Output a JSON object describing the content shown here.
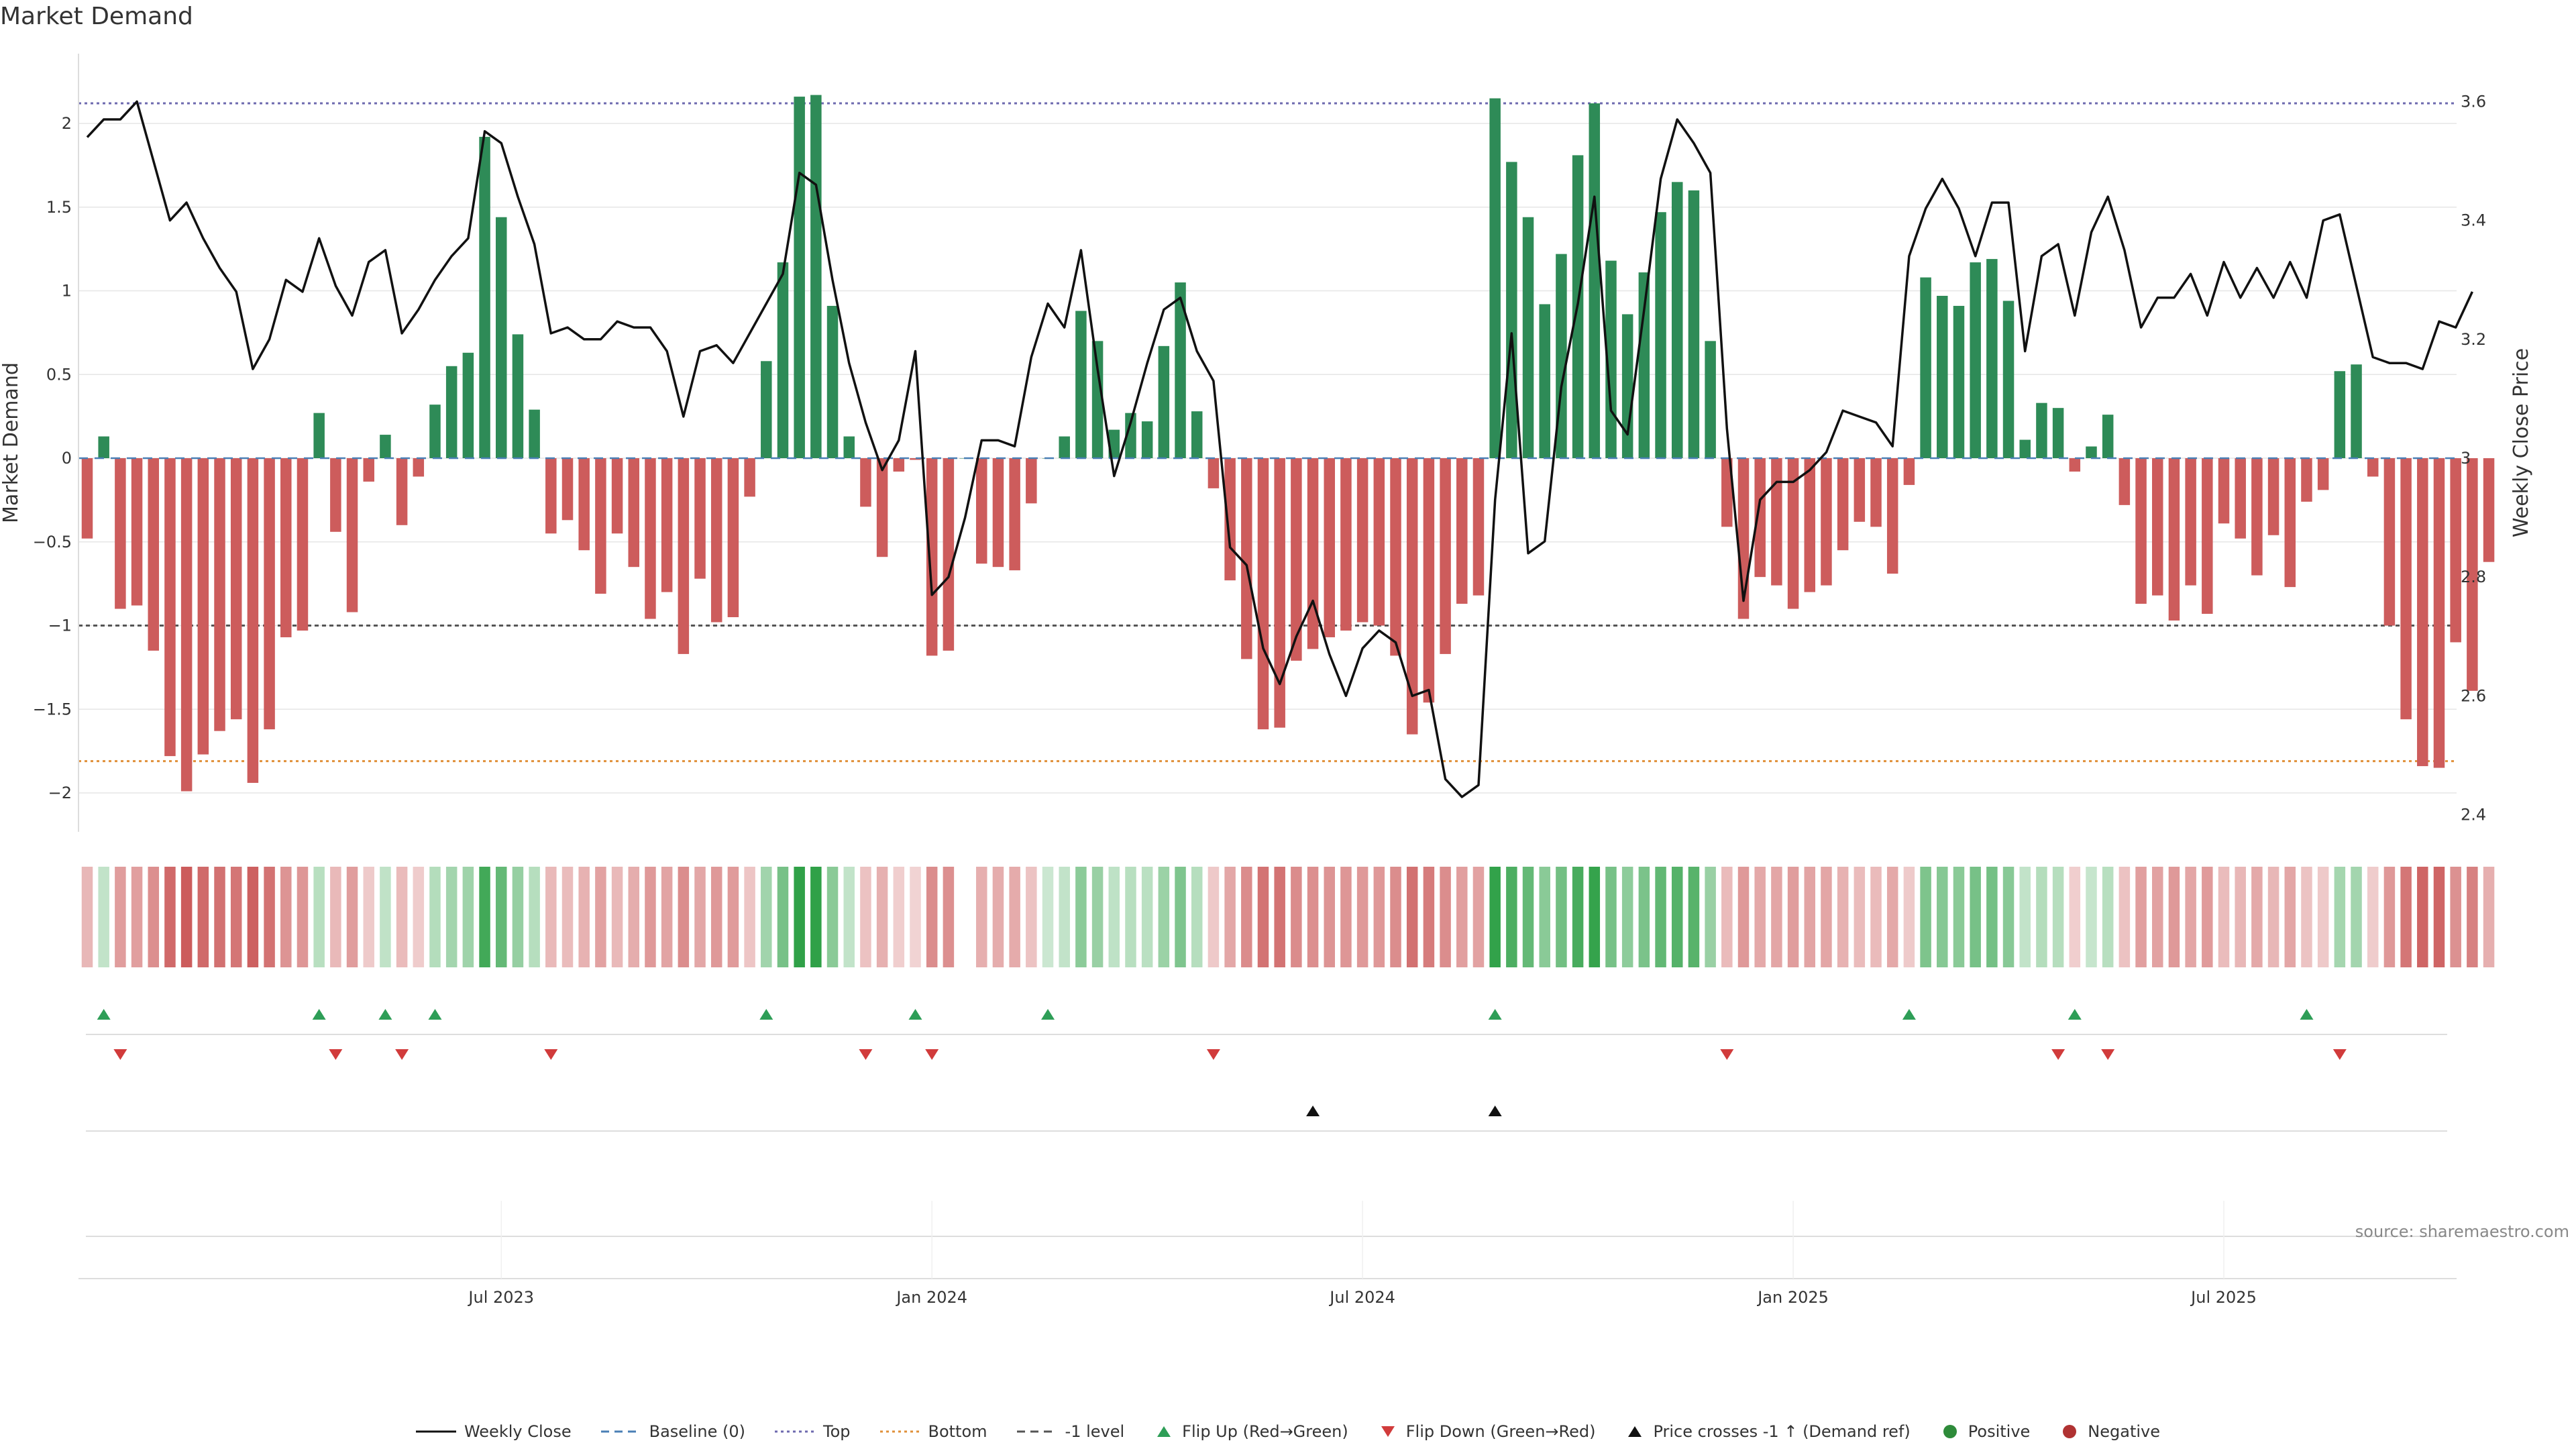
{
  "title": "Market Demand",
  "source": "source: sharemaestro.com",
  "chart_data": {
    "type": "bar",
    "title": "Market Demand",
    "ylabel": "Market Demand",
    "y2label": "Weekly Close Price",
    "ylim": [
      -2.25,
      2.45
    ],
    "y2lim": [
      2.35,
      3.67
    ],
    "yticks": [
      "2",
      "1.5",
      "1",
      "0.5",
      "0",
      "−0.5",
      "−1",
      "−1.5",
      "−2"
    ],
    "y2ticks": [
      "3.6",
      "3.4",
      "3.2",
      "3",
      "2.8",
      "2.6",
      "2.4"
    ],
    "x_start": "2023-01-10",
    "x_step_weeks": 1,
    "xticks": [
      {
        "label": "Jul 2023",
        "week": 25
      },
      {
        "label": "Jan 2024",
        "week": 51
      },
      {
        "label": "Jul 2024",
        "week": 77
      },
      {
        "label": "Jan 2025",
        "week": 103
      },
      {
        "label": "Jul 2025",
        "week": 129
      }
    ],
    "reference_lines": {
      "top": 2.12,
      "bottom": -1.81,
      "minus_one": -1.0
    },
    "demand": [
      -0.48,
      0.13,
      -0.9,
      -0.88,
      -1.15,
      -1.78,
      -1.99,
      -1.77,
      -1.63,
      -1.56,
      -1.94,
      -1.62,
      -1.07,
      -1.03,
      0.27,
      -0.44,
      -0.92,
      -0.14,
      0.14,
      -0.4,
      -0.11,
      0.32,
      0.55,
      0.63,
      1.92,
      1.44,
      0.74,
      0.29,
      -0.45,
      -0.37,
      -0.55,
      -0.81,
      -0.45,
      -0.65,
      -0.96,
      -0.8,
      -1.17,
      -0.72,
      -0.98,
      -0.95,
      -0.23,
      0.58,
      1.17,
      2.16,
      2.17,
      0.91,
      0.13,
      -0.29,
      -0.59,
      -0.08,
      -0.01,
      -1.18,
      -1.15,
      0.0,
      -0.63,
      -0.65,
      -0.67,
      -0.27,
      0.0,
      0.13,
      0.88,
      0.7,
      0.17,
      0.27,
      0.22,
      0.67,
      1.05,
      0.28,
      -0.18,
      -0.73,
      -1.2,
      -1.62,
      -1.61,
      -1.21,
      -1.14,
      -1.07,
      -1.03,
      -0.98,
      -1.0,
      -1.18,
      -1.65,
      -1.46,
      -1.17,
      -0.87,
      -0.82,
      2.15,
      1.77,
      1.44,
      0.92,
      1.22,
      1.81,
      2.12,
      1.18,
      0.86,
      1.11,
      1.47,
      1.65,
      1.6,
      0.7,
      -0.41,
      -0.96,
      -0.71,
      -0.76,
      -0.9,
      -0.8,
      -0.76,
      -0.55,
      -0.38,
      -0.41,
      -0.69,
      -0.16,
      1.08,
      0.97,
      0.91,
      1.17,
      1.19,
      0.94,
      0.11,
      0.33,
      0.3,
      -0.08,
      0.07,
      0.26,
      -0.28,
      -0.87,
      -0.82,
      -0.97,
      -0.76,
      -0.93,
      -0.39,
      -0.48,
      -0.7,
      -0.46,
      -0.77,
      -0.26,
      -0.19,
      0.52,
      0.56,
      -0.11,
      -1.0,
      -1.56,
      -1.84,
      -1.85,
      -1.1,
      -1.39,
      -0.62
    ],
    "weekly_close": [
      3.54,
      3.57,
      3.57,
      3.6,
      3.5,
      3.4,
      3.43,
      3.37,
      3.32,
      3.28,
      3.15,
      3.2,
      3.3,
      3.28,
      3.37,
      3.29,
      3.24,
      3.33,
      3.35,
      3.21,
      3.25,
      3.3,
      3.34,
      3.37,
      3.55,
      3.53,
      3.44,
      3.36,
      3.21,
      3.22,
      3.2,
      3.2,
      3.23,
      3.22,
      3.22,
      3.18,
      3.07,
      3.18,
      3.19,
      3.16,
      3.21,
      3.26,
      3.31,
      3.48,
      3.46,
      3.3,
      3.16,
      3.06,
      2.98,
      3.03,
      3.18,
      2.77,
      2.8,
      2.9,
      3.03,
      3.03,
      3.02,
      3.17,
      3.26,
      3.22,
      3.35,
      3.15,
      2.97,
      3.06,
      3.16,
      3.25,
      3.27,
      3.18,
      3.13,
      2.85,
      2.82,
      2.68,
      2.62,
      2.7,
      2.76,
      2.67,
      2.6,
      2.68,
      2.71,
      2.69,
      2.6,
      2.61,
      2.46,
      2.43,
      2.45,
      2.93,
      3.21,
      2.84,
      2.86,
      3.12,
      3.26,
      3.44,
      3.08,
      3.04,
      3.25,
      3.47,
      3.57,
      3.53,
      3.48,
      3.05,
      2.76,
      2.93,
      2.96,
      2.96,
      2.98,
      3.01,
      3.08,
      3.07,
      3.06,
      3.02,
      3.34,
      3.42,
      3.47,
      3.42,
      3.34,
      3.43,
      3.43,
      3.18,
      3.34,
      3.36,
      3.24,
      3.38,
      3.44,
      3.35,
      3.22,
      3.27,
      3.27,
      3.31,
      3.24,
      3.33,
      3.27,
      3.32,
      3.27,
      3.33,
      3.27,
      3.4,
      3.41,
      3.29,
      3.17,
      3.16,
      3.16,
      3.15,
      3.23,
      3.22,
      3.28
    ],
    "heat_gaps": [
      53
    ],
    "flip_up_weeks": [
      1,
      14,
      18,
      21,
      41,
      50,
      58,
      85,
      110,
      120,
      134
    ],
    "flip_down_weeks": [
      2,
      15,
      19,
      28,
      47,
      51,
      68,
      99,
      119,
      122,
      136
    ],
    "price_cross_weeks": [
      74,
      85
    ],
    "legend": [
      {
        "label": "Weekly Close",
        "symbol": "line",
        "color": "#111111"
      },
      {
        "label": "Baseline (0)",
        "symbol": "dash",
        "color": "#4a7fb5"
      },
      {
        "label": "Top",
        "symbol": "dot",
        "color": "#6e6aaf"
      },
      {
        "label": "Bottom",
        "symbol": "dot",
        "color": "#e0903a"
      },
      {
        "label": "-1 level",
        "symbol": "dash",
        "color": "#555555"
      },
      {
        "label": "Flip Up (Red→Green)",
        "symbol": "tri-up",
        "color": "#2e9e57"
      },
      {
        "label": "Flip Down (Green→Red)",
        "symbol": "tri-down",
        "color": "#d13b3b"
      },
      {
        "label": "Price crosses -1 ↑ (Demand ref)",
        "symbol": "tri-up",
        "color": "#111111"
      },
      {
        "label": "Positive",
        "symbol": "circle",
        "color": "#2e8b3a"
      },
      {
        "label": "Negative",
        "symbol": "circle",
        "color": "#b03232"
      }
    ]
  },
  "colors": {
    "positive_bar": "#2e8b57",
    "negative_bar": "#cd5c5c",
    "grid": "#e6e6e6"
  }
}
